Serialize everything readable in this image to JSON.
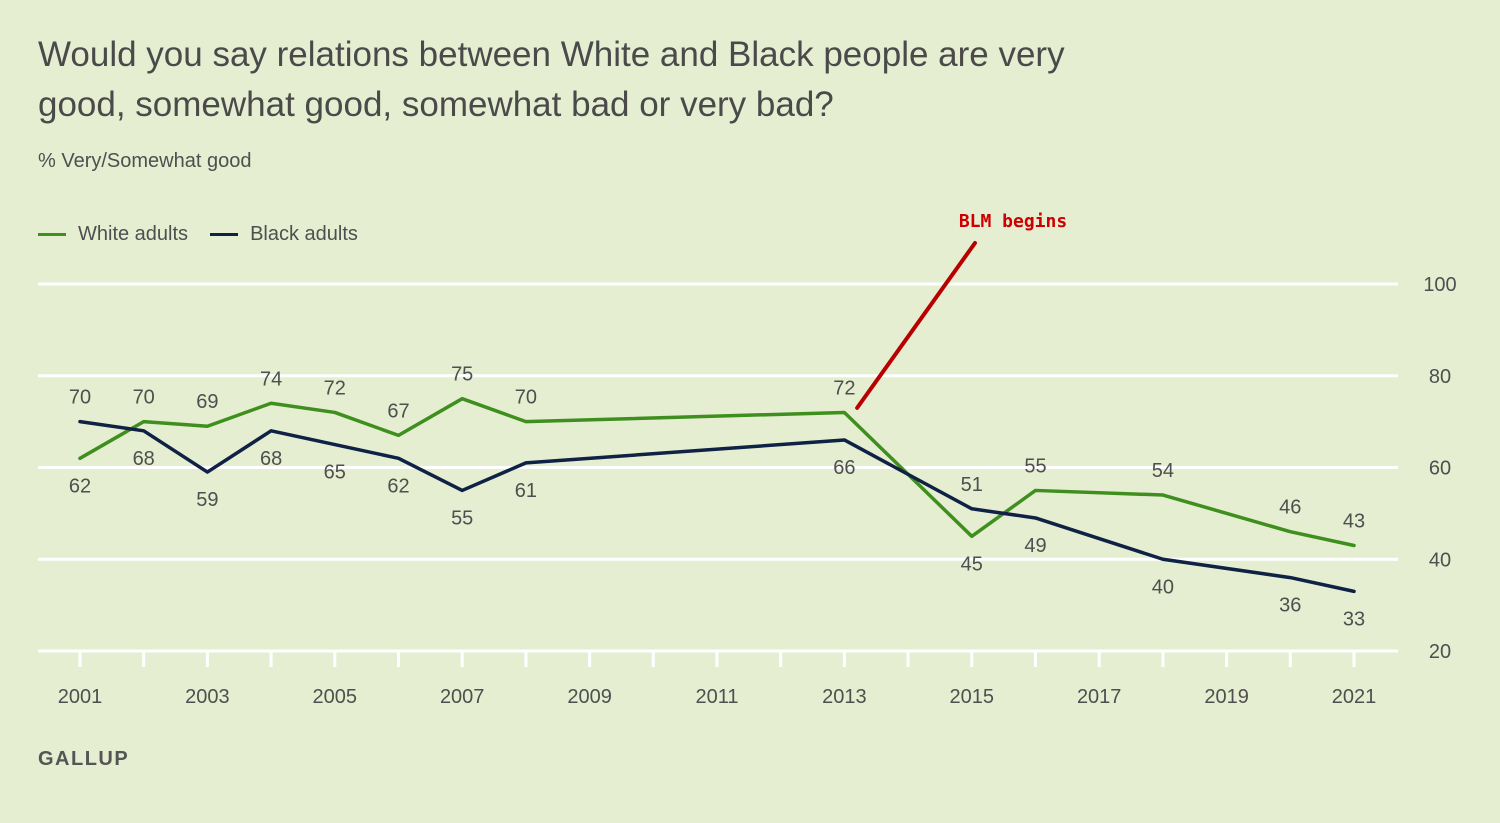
{
  "chart_data": {
    "type": "line",
    "title": "Would you say relations between White and Black people are very good, somewhat good, somewhat bad or very bad?",
    "subtitle": "% Very/Somewhat good",
    "source": "GALLUP",
    "xlabel": "",
    "ylabel": "",
    "xlim": [
      2001,
      2021
    ],
    "ylim": [
      20,
      100
    ],
    "x_ticks": [
      2001,
      2003,
      2005,
      2007,
      2009,
      2011,
      2013,
      2015,
      2017,
      2019,
      2021
    ],
    "y_ticks": [
      20,
      40,
      60,
      80,
      100
    ],
    "legend_position": "top-left",
    "series": [
      {
        "name": "White adults",
        "color": "#3f8f1f",
        "x": [
          2001,
          2002,
          2003,
          2004,
          2005,
          2006,
          2007,
          2008,
          2013,
          2015,
          2016,
          2018,
          2020,
          2021
        ],
        "values": [
          62,
          70,
          69,
          74,
          72,
          67,
          75,
          70,
          72,
          45,
          55,
          54,
          46,
          43
        ]
      },
      {
        "name": "Black adults",
        "color": "#0f2145",
        "x": [
          2001,
          2002,
          2003,
          2004,
          2005,
          2006,
          2007,
          2008,
          2013,
          2015,
          2016,
          2018,
          2020,
          2021
        ],
        "values": [
          70,
          68,
          59,
          68,
          65,
          62,
          55,
          61,
          66,
          51,
          49,
          40,
          36,
          33
        ]
      }
    ],
    "annotations": [
      {
        "text": "BLM begins",
        "color": "#cc0000",
        "line_color": "#b80000",
        "pointer_x": 2013.2,
        "pointer_y": 73
      }
    ]
  }
}
